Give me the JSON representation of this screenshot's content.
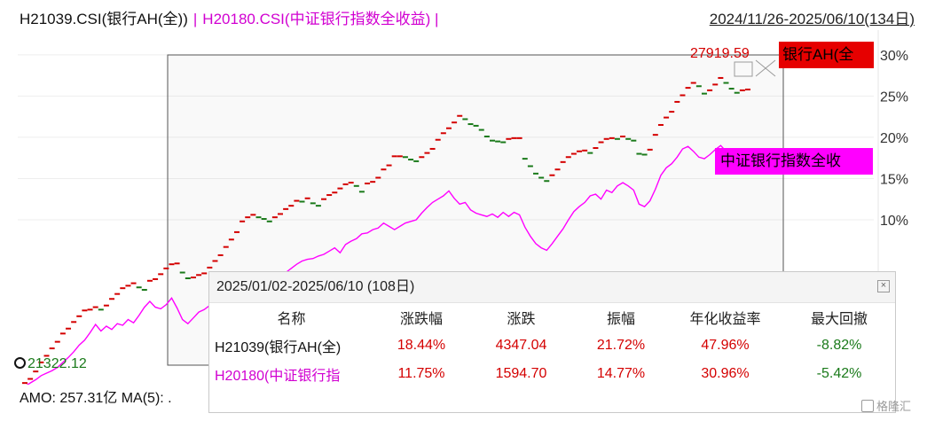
{
  "header": {
    "series1_label": "H21039.CSI(银行AH(全))",
    "separator": "|",
    "series2_label": "H20180.CSI(中证银行指数全收益)  |",
    "date_range": "2024/11/26-2025/06/10(134日)"
  },
  "chart_data": {
    "type": "line",
    "title": "",
    "y_axis": {
      "position": "right",
      "unit": "%",
      "ticks": [
        10,
        15,
        20,
        25,
        30
      ]
    },
    "ylim": [
      -10,
      33
    ],
    "x_count": 134,
    "series": [
      {
        "name": "银行AH(全)",
        "style": "dashed-candles",
        "color": "#d40000",
        "down_color": "#1a7a1a",
        "values": [
          -9.8,
          -9.3,
          -8.4,
          -7.3,
          -6.5,
          -5.6,
          -4.8,
          -3.8,
          -3.2,
          -2.4,
          -1.7,
          -1.0,
          -0.9,
          -0.6,
          -0.9,
          -0.4,
          0.4,
          1.0,
          1.7,
          2.0,
          2.3,
          1.8,
          1.5,
          2.6,
          2.8,
          3.4,
          4.1,
          4.6,
          4.7,
          3.6,
          2.9,
          3.0,
          3.3,
          3.5,
          4.2,
          5.0,
          5.7,
          6.7,
          7.6,
          8.5,
          9.8,
          10.3,
          10.6,
          10.3,
          10.1,
          9.8,
          10.3,
          10.7,
          11.3,
          11.7,
          12.3,
          12.2,
          12.6,
          12.0,
          11.7,
          12.5,
          13.0,
          13.3,
          13.8,
          14.3,
          14.5,
          14.1,
          13.4,
          14.4,
          14.6,
          15.1,
          16.1,
          16.6,
          17.7,
          17.7,
          17.6,
          17.3,
          17.1,
          17.6,
          18.1,
          18.6,
          19.7,
          20.5,
          21.1,
          21.8,
          22.6,
          22.2,
          21.6,
          21.4,
          20.9,
          20.1,
          19.6,
          19.5,
          19.4,
          19.8,
          19.9,
          19.9,
          17.4,
          16.5,
          15.6,
          15.1,
          14.7,
          15.4,
          16.1,
          17.0,
          17.6,
          18.0,
          18.3,
          18.4,
          18.1,
          18.7,
          19.4,
          19.8,
          19.9,
          19.8,
          20.1,
          19.8,
          19.6,
          18.0,
          17.9,
          18.5,
          20.3,
          21.5,
          22.4,
          23.1,
          24.3,
          25.1,
          26.0,
          26.6,
          26.2,
          25.3,
          25.7,
          26.4,
          27.2,
          26.6,
          25.9,
          25.4,
          25.7,
          25.8
        ]
      },
      {
        "name": "中证银行指数全收益",
        "style": "line",
        "color": "#ff00ff",
        "values": [
          -10.2,
          -9.8,
          -9.4,
          -8.9,
          -8.6,
          -8.3,
          -7.9,
          -7.3,
          -6.7,
          -6.0,
          -5.2,
          -4.6,
          -3.7,
          -2.7,
          -3.5,
          -2.9,
          -3.3,
          -2.6,
          -2.8,
          -2.1,
          -2.5,
          -1.6,
          -0.6,
          0.1,
          -0.6,
          -0.8,
          -0.3,
          0.5,
          -0.7,
          -2.1,
          -2.6,
          -1.9,
          -1.2,
          -0.9,
          -0.4,
          -0.5,
          0.3,
          1.2,
          0.8,
          1.1,
          1.6,
          2.4,
          3.1,
          2.6,
          2.2,
          2.8,
          3.1,
          3.4,
          3.6,
          4.1,
          4.6,
          5.0,
          5.2,
          5.3,
          5.6,
          5.8,
          6.2,
          6.6,
          6.0,
          7.0,
          7.4,
          7.7,
          8.3,
          8.4,
          8.8,
          9.0,
          9.6,
          9.2,
          8.8,
          9.2,
          9.6,
          9.8,
          10.0,
          10.8,
          11.5,
          12.1,
          12.5,
          12.9,
          13.5,
          12.6,
          11.9,
          12.1,
          11.2,
          10.8,
          10.6,
          10.4,
          10.7,
          10.3,
          10.9,
          10.4,
          10.9,
          10.6,
          9.1,
          8.0,
          7.1,
          6.6,
          6.3,
          7.1,
          8.0,
          8.9,
          10.0,
          11.0,
          11.6,
          12.1,
          12.9,
          13.1,
          12.5,
          13.6,
          13.3,
          14.1,
          14.5,
          14.1,
          13.6,
          11.9,
          11.6,
          12.3,
          13.7,
          15.4,
          16.3,
          16.8,
          17.6,
          18.6,
          18.9,
          18.3,
          17.6,
          17.4,
          17.9,
          18.5,
          19.0,
          18.3,
          17.8,
          17.6,
          17.9,
          18.1
        ]
      }
    ],
    "price_label": "27919.59",
    "series1_tag": "银行AH(全",
    "series2_tag": "中证银行指数全收",
    "low_label": "21322.12"
  },
  "footer": {
    "amo": "AMO: 257.31亿  MA(5): ."
  },
  "popup": {
    "title": "2025/01/02-2025/06/10 (108日)",
    "columns": [
      "名称",
      "涨跌幅",
      "涨跌",
      "振幅",
      "年化收益率",
      "最大回撤"
    ],
    "rows": [
      {
        "name": "H21039(银行AH(全)",
        "pct": "18.44%",
        "chg": "4347.04",
        "amp": "21.72%",
        "annual": "47.96%",
        "dd": "-8.82%"
      },
      {
        "name": "H20180(中证银行指",
        "pct": "11.75%",
        "chg": "1594.70",
        "amp": "14.77%",
        "annual": "30.96%",
        "dd": "-5.42%"
      }
    ]
  },
  "watermark": "格隆汇"
}
